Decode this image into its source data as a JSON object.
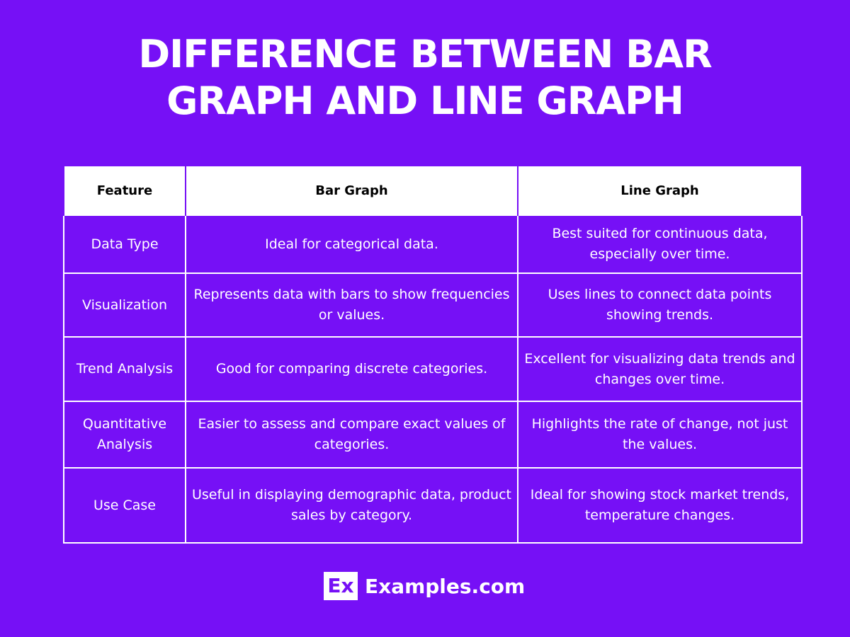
{
  "header": {
    "title": "DIFFERENCE BETWEEN BAR GRAPH AND LINE GRAPH"
  },
  "table": {
    "columns": [
      "Feature",
      "Bar Graph",
      "Line Graph"
    ],
    "rows": [
      [
        "Data Type",
        "Ideal for categorical data.",
        "Best suited for continuous data, especially over time."
      ],
      [
        "Visualization",
        "Represents data with bars to show frequencies or values.",
        "Uses lines to connect data points showing trends."
      ],
      [
        "Trend Analysis",
        "Good for comparing discrete categories.",
        "Excellent for visualizing data trends and changes over time."
      ],
      [
        "Quantitative Analysis",
        "Easier to assess and compare exact values of categories.",
        "Highlights the rate of change, not just the values."
      ],
      [
        "Use Case",
        "Useful in displaying demographic data, product sales by category.",
        "Ideal for showing stock market trends, temperature changes."
      ]
    ]
  },
  "footer": {
    "logo_mark": "Ex",
    "site": "Examples.com"
  }
}
